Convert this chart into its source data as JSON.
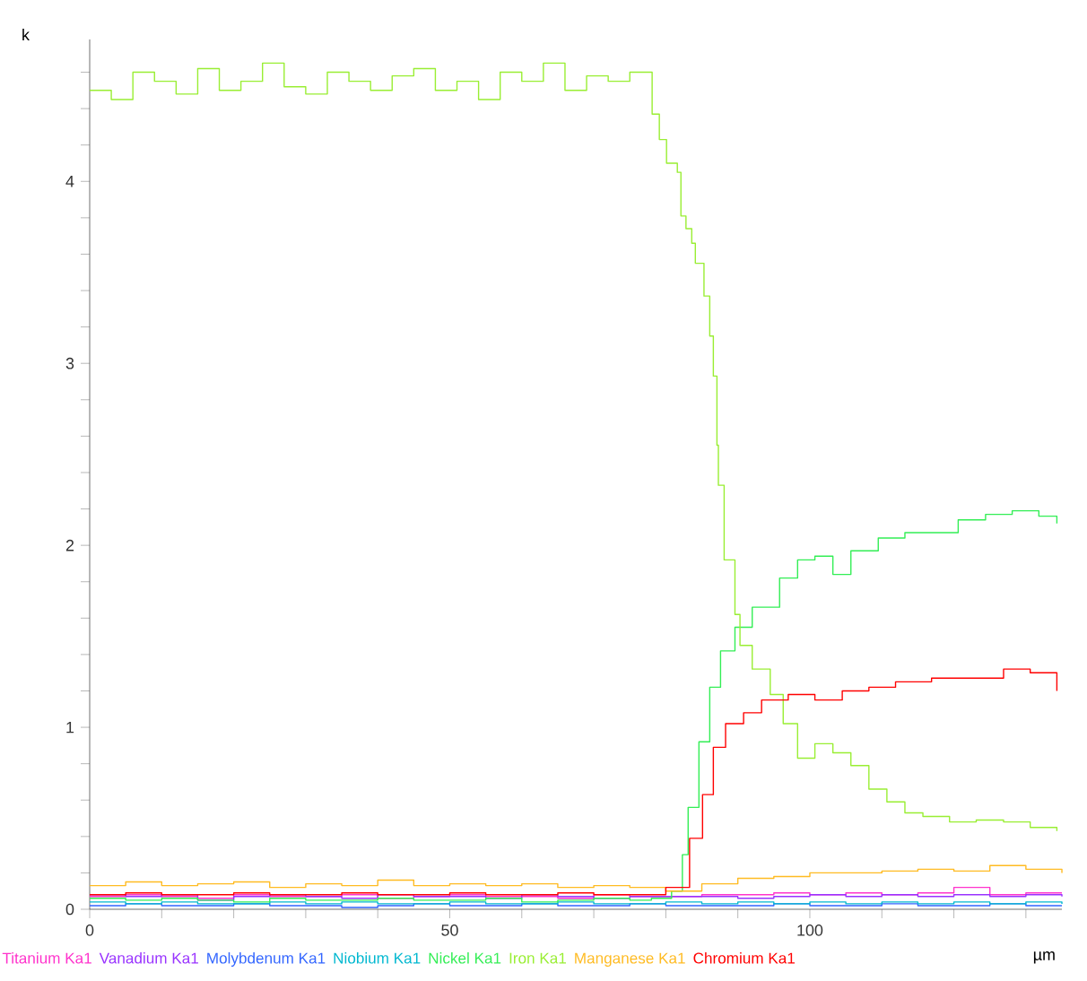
{
  "chart_data": {
    "type": "step",
    "ylabel": "k",
    "xlabel": "µm",
    "legend": "bottom",
    "xlim": [
      0,
      135
    ],
    "ylim": [
      0,
      4.78
    ],
    "xticks": [
      0,
      {
        "value": 10,
        "label": null
      },
      {
        "value": 20,
        "label": null
      },
      {
        "value": 30,
        "label": null
      },
      {
        "value": 40,
        "label": null
      },
      50,
      {
        "value": 60,
        "label": null
      },
      {
        "value": 70,
        "label": null
      },
      {
        "value": 80,
        "label": null
      },
      {
        "value": 90,
        "label": null
      },
      100,
      {
        "value": 110,
        "label": null
      },
      {
        "value": 120,
        "label": null
      },
      {
        "value": 130,
        "label": null
      }
    ],
    "yticks": [
      0,
      {
        "value": 0.2,
        "label": null
      },
      {
        "value": 0.4,
        "label": null
      },
      {
        "value": 0.6,
        "label": null
      },
      {
        "value": 0.8,
        "label": null
      },
      1,
      {
        "value": 1.2,
        "label": null
      },
      {
        "value": 1.4,
        "label": null
      },
      {
        "value": 1.6,
        "label": null
      },
      {
        "value": 1.8,
        "label": null
      },
      2,
      {
        "value": 2.2,
        "label": null
      },
      {
        "value": 2.4,
        "label": null
      },
      {
        "value": 2.6,
        "label": null
      },
      {
        "value": 2.8,
        "label": null
      },
      3,
      {
        "value": 3.2,
        "label": null
      },
      {
        "value": 3.4,
        "label": null
      },
      {
        "value": 3.6,
        "label": null
      },
      {
        "value": 3.8,
        "label": null
      },
      4,
      {
        "value": 4.2,
        "label": null
      },
      {
        "value": 4.4,
        "label": null
      },
      {
        "value": 4.6,
        "label": null
      }
    ],
    "series": [
      {
        "name": "Titanium Ka1",
        "color": "#ff33cc",
        "x": [
          0,
          5,
          10,
          15,
          20,
          25,
          30,
          35,
          40,
          45,
          50,
          55,
          60,
          65,
          70,
          75,
          80,
          85,
          90,
          95,
          100,
          105,
          110,
          115,
          120,
          125,
          130,
          135
        ],
        "values": [
          0.07,
          0.08,
          0.07,
          0.06,
          0.08,
          0.07,
          0.07,
          0.08,
          0.06,
          0.07,
          0.08,
          0.07,
          0.07,
          0.06,
          0.08,
          0.07,
          0.07,
          0.08,
          0.08,
          0.09,
          0.08,
          0.09,
          0.08,
          0.09,
          0.12,
          0.08,
          0.09,
          0.09
        ]
      },
      {
        "name": "Vanadium Ka1",
        "color": "#9933ff",
        "x": [
          0,
          5,
          10,
          15,
          20,
          25,
          30,
          35,
          40,
          45,
          50,
          55,
          60,
          65,
          70,
          75,
          80,
          85,
          90,
          95,
          100,
          105,
          110,
          115,
          120,
          125,
          130,
          135
        ],
        "values": [
          0.08,
          0.07,
          0.08,
          0.05,
          0.07,
          0.08,
          0.07,
          0.06,
          0.08,
          0.07,
          0.07,
          0.06,
          0.08,
          0.07,
          0.06,
          0.07,
          0.07,
          0.07,
          0.06,
          0.07,
          0.08,
          0.07,
          0.08,
          0.07,
          0.08,
          0.07,
          0.08,
          0.07
        ]
      },
      {
        "name": "Molybdenum Ka1",
        "color": "#3366ff",
        "x": [
          0,
          5,
          10,
          15,
          20,
          25,
          30,
          35,
          40,
          45,
          50,
          55,
          60,
          65,
          70,
          75,
          80,
          85,
          90,
          95,
          100,
          105,
          110,
          115,
          120,
          125,
          130,
          135
        ],
        "values": [
          0.02,
          0.03,
          0.02,
          0.02,
          0.03,
          0.02,
          0.02,
          0.01,
          0.02,
          0.03,
          0.02,
          0.02,
          0.03,
          0.02,
          0.02,
          0.03,
          0.02,
          0.02,
          0.02,
          0.03,
          0.02,
          0.02,
          0.03,
          0.02,
          0.02,
          0.03,
          0.02,
          0.02
        ]
      },
      {
        "name": "Niobium Ka1",
        "color": "#00b8d0",
        "x": [
          0,
          5,
          10,
          15,
          20,
          25,
          30,
          35,
          40,
          45,
          50,
          55,
          60,
          65,
          70,
          75,
          80,
          85,
          90,
          95,
          100,
          105,
          110,
          115,
          120,
          125,
          130,
          135
        ],
        "values": [
          0.04,
          0.03,
          0.04,
          0.03,
          0.03,
          0.04,
          0.03,
          0.04,
          0.03,
          0.03,
          0.04,
          0.03,
          0.03,
          0.04,
          0.03,
          0.03,
          0.04,
          0.03,
          0.04,
          0.03,
          0.04,
          0.03,
          0.04,
          0.03,
          0.04,
          0.03,
          0.04,
          0.03
        ]
      },
      {
        "name": "Nickel Ka1",
        "color": "#33ee55",
        "x": [
          0,
          5,
          10,
          15,
          20,
          25,
          30,
          35,
          40,
          45,
          50,
          55,
          60,
          65,
          70,
          75,
          78,
          80.8,
          82.3,
          83.1,
          84.6,
          86.1,
          87.6,
          89.6,
          92,
          95.8,
          98.3,
          100.7,
          103.2,
          105.7,
          109.5,
          113.2,
          116.9,
          120.6,
          124.4,
          128.1,
          131.8,
          134.3
        ],
        "values": [
          0.06,
          0.05,
          0.06,
          0.05,
          0.04,
          0.06,
          0.05,
          0.05,
          0.06,
          0.05,
          0.05,
          0.06,
          0.04,
          0.05,
          0.06,
          0.05,
          0.06,
          0.1,
          0.3,
          0.56,
          0.92,
          1.22,
          1.42,
          1.55,
          1.66,
          1.82,
          1.92,
          1.94,
          1.84,
          1.97,
          2.04,
          2.07,
          2.07,
          2.14,
          2.17,
          2.19,
          2.16,
          2.12
        ]
      },
      {
        "name": "Iron Ka1",
        "color": "#99ee33",
        "x": [
          0,
          3,
          6,
          9,
          12,
          15,
          18,
          21,
          24,
          27,
          30,
          33,
          36,
          39,
          42,
          45,
          48,
          51,
          54,
          57,
          60,
          63,
          66,
          69,
          72,
          75,
          78.1,
          79.1,
          80.1,
          81.6,
          82.1,
          82.8,
          83.6,
          84.1,
          85.3,
          86.1,
          86.6,
          87.1,
          87.3,
          88.1,
          89.6,
          90.3,
          92,
          94.5,
          96.3,
          98.3,
          100.7,
          103.2,
          105.7,
          108.2,
          110.7,
          113.2,
          115.7,
          119.4,
          123.1,
          126.9,
          130.6,
          134.3
        ],
        "values": [
          4.5,
          4.45,
          4.6,
          4.55,
          4.48,
          4.62,
          4.5,
          4.55,
          4.65,
          4.52,
          4.48,
          4.6,
          4.55,
          4.5,
          4.58,
          4.62,
          4.5,
          4.55,
          4.45,
          4.6,
          4.55,
          4.65,
          4.5,
          4.58,
          4.55,
          4.6,
          4.37,
          4.23,
          4.1,
          4.05,
          3.81,
          3.74,
          3.66,
          3.55,
          3.37,
          3.15,
          2.93,
          2.55,
          2.33,
          1.92,
          1.62,
          1.45,
          1.32,
          1.18,
          1.02,
          0.83,
          0.91,
          0.86,
          0.79,
          0.66,
          0.59,
          0.53,
          0.51,
          0.48,
          0.49,
          0.48,
          0.45,
          0.43
        ]
      },
      {
        "name": "Manganese Ka1",
        "color": "#ffbb22",
        "x": [
          0,
          5,
          10,
          15,
          20,
          25,
          30,
          35,
          40,
          45,
          50,
          55,
          60,
          65,
          70,
          75,
          80,
          85,
          90,
          95,
          100,
          105,
          110,
          115,
          120,
          125,
          130,
          135
        ],
        "values": [
          0.13,
          0.15,
          0.13,
          0.14,
          0.15,
          0.12,
          0.14,
          0.13,
          0.16,
          0.13,
          0.14,
          0.13,
          0.14,
          0.12,
          0.13,
          0.12,
          0.1,
          0.14,
          0.17,
          0.18,
          0.2,
          0.2,
          0.21,
          0.22,
          0.21,
          0.24,
          0.22,
          0.2
        ]
      },
      {
        "name": "Chromium Ka1",
        "color": "#ff0000",
        "x": [
          0,
          5,
          10,
          15,
          20,
          25,
          30,
          35,
          40,
          45,
          50,
          55,
          60,
          65,
          70,
          75,
          80,
          83.3,
          85.1,
          86.6,
          88.3,
          90.8,
          93.3,
          97,
          100.7,
          104.5,
          108.2,
          111.9,
          116.9,
          121.9,
          126.9,
          130.6,
          134.3
        ],
        "values": [
          0.08,
          0.09,
          0.08,
          0.08,
          0.09,
          0.08,
          0.08,
          0.09,
          0.08,
          0.08,
          0.09,
          0.08,
          0.08,
          0.09,
          0.08,
          0.08,
          0.12,
          0.39,
          0.63,
          0.89,
          1.02,
          1.08,
          1.15,
          1.18,
          1.15,
          1.2,
          1.22,
          1.25,
          1.27,
          1.27,
          1.32,
          1.3,
          1.2
        ]
      }
    ]
  }
}
